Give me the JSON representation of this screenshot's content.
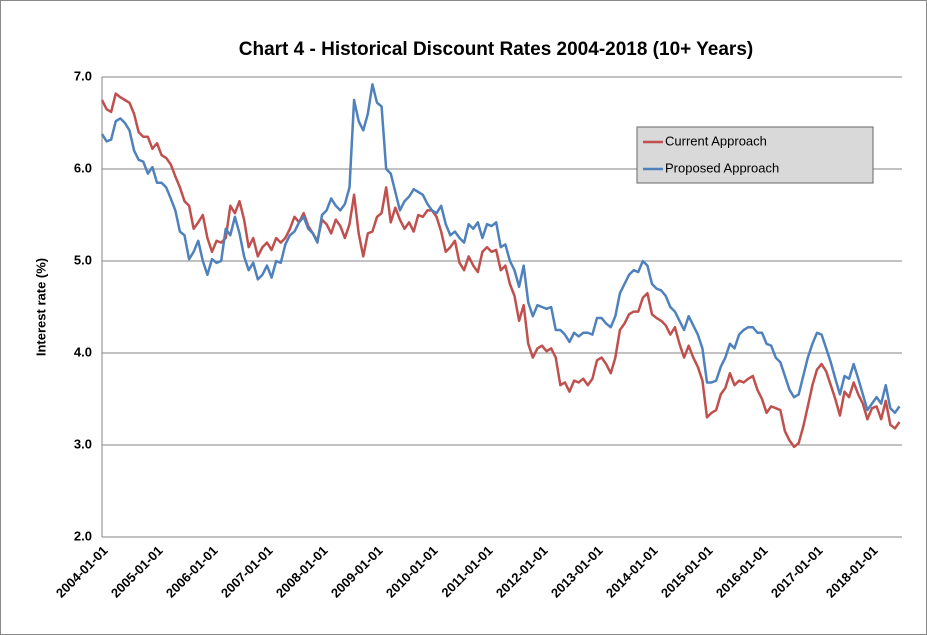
{
  "chart_data": {
    "type": "line",
    "title": "Chart 4 - Historical Discount Rates 2004-2018 (10+ Years)",
    "y_label": "Interest rate (%)",
    "ylim": [
      2,
      7
    ],
    "yticks": [
      {
        "value": 2,
        "label": "2.0"
      },
      {
        "value": 3,
        "label": "3.0"
      },
      {
        "value": 4,
        "label": "4.0"
      },
      {
        "value": 5,
        "label": "5.0"
      },
      {
        "value": 6,
        "label": "6.0"
      },
      {
        "value": 7,
        "label": "7.0"
      }
    ],
    "grid": true,
    "legend": "upper right",
    "categories": [
      "2004-01-01",
      null,
      null,
      null,
      null,
      null,
      null,
      null,
      null,
      null,
      null,
      null,
      "2005-01-01",
      null,
      null,
      null,
      null,
      null,
      null,
      null,
      null,
      null,
      null,
      null,
      "2006-01-01",
      null,
      null,
      null,
      null,
      null,
      null,
      null,
      null,
      null,
      null,
      null,
      "2007-01-01",
      null,
      null,
      null,
      null,
      null,
      null,
      null,
      null,
      null,
      null,
      null,
      "2008-01-01",
      null,
      null,
      null,
      null,
      null,
      null,
      null,
      null,
      null,
      null,
      null,
      "2009-01-01",
      null,
      null,
      null,
      null,
      null,
      null,
      null,
      null,
      null,
      null,
      null,
      "2010-01-01",
      null,
      null,
      null,
      null,
      null,
      null,
      null,
      null,
      null,
      null,
      null,
      "2011-01-01",
      null,
      null,
      null,
      null,
      null,
      null,
      null,
      null,
      null,
      null,
      null,
      "2012-01-01",
      null,
      null,
      null,
      null,
      null,
      null,
      null,
      null,
      null,
      null,
      null,
      "2013-01-01",
      null,
      null,
      null,
      null,
      null,
      null,
      null,
      null,
      null,
      null,
      null,
      "2014-01-01",
      null,
      null,
      null,
      null,
      null,
      null,
      null,
      null,
      null,
      null,
      null,
      "2015-01-01",
      null,
      null,
      null,
      null,
      null,
      null,
      null,
      null,
      null,
      null,
      null,
      "2016-01-01",
      null,
      null,
      null,
      null,
      null,
      null,
      null,
      null,
      null,
      null,
      null,
      "2017-01-01",
      null,
      null,
      null,
      null,
      null,
      null,
      null,
      null,
      null,
      null,
      null,
      "2018-01-01",
      null,
      null,
      null,
      null,
      null,
      null
    ],
    "series": [
      {
        "name": "Current Approach",
        "color": "#c0504d",
        "values": [
          6.75,
          6.65,
          6.62,
          6.82,
          6.78,
          6.75,
          6.72,
          6.6,
          6.4,
          6.35,
          6.35,
          6.22,
          6.28,
          6.15,
          6.12,
          6.05,
          5.92,
          5.8,
          5.65,
          5.6,
          5.35,
          5.42,
          5.5,
          5.25,
          5.1,
          5.22,
          5.2,
          5.25,
          5.6,
          5.52,
          5.65,
          5.45,
          5.15,
          5.25,
          5.05,
          5.15,
          5.2,
          5.12,
          5.25,
          5.2,
          5.25,
          5.35,
          5.48,
          5.42,
          5.52,
          5.38,
          5.3,
          5.22,
          5.45,
          5.4,
          5.3,
          5.45,
          5.38,
          5.25,
          5.4,
          5.72,
          5.3,
          5.05,
          5.3,
          5.32,
          5.48,
          5.52,
          5.8,
          5.42,
          5.58,
          5.45,
          5.35,
          5.42,
          5.32,
          5.5,
          5.48,
          5.55,
          5.55,
          5.48,
          5.32,
          5.1,
          5.15,
          5.22,
          4.98,
          4.9,
          5.05,
          4.95,
          4.88,
          5.1,
          5.15,
          5.1,
          5.12,
          4.9,
          4.95,
          4.75,
          4.62,
          4.35,
          4.52,
          4.1,
          3.95,
          4.05,
          4.08,
          4.02,
          4.05,
          3.95,
          3.65,
          3.68,
          3.58,
          3.7,
          3.68,
          3.72,
          3.65,
          3.72,
          3.92,
          3.95,
          3.88,
          3.78,
          3.95,
          4.25,
          4.32,
          4.42,
          4.45,
          4.45,
          4.6,
          4.65,
          4.42,
          4.38,
          4.35,
          4.3,
          4.2,
          4.28,
          4.1,
          3.95,
          4.08,
          3.95,
          3.85,
          3.7,
          3.3,
          3.35,
          3.38,
          3.55,
          3.62,
          3.78,
          3.65,
          3.7,
          3.68,
          3.72,
          3.75,
          3.6,
          3.5,
          3.35,
          3.42,
          3.4,
          3.38,
          3.15,
          3.05,
          2.98,
          3.02,
          3.2,
          3.42,
          3.65,
          3.82,
          3.88,
          3.8,
          3.65,
          3.5,
          3.32,
          3.58,
          3.52,
          3.68,
          3.55,
          3.45,
          3.28,
          3.4,
          3.42,
          3.28,
          3.48,
          3.22,
          3.18,
          3.25
        ]
      },
      {
        "name": "Proposed Approach",
        "color": "#4f81bd",
        "values": [
          6.38,
          6.3,
          6.32,
          6.52,
          6.55,
          6.5,
          6.42,
          6.2,
          6.1,
          6.08,
          5.95,
          6.02,
          5.85,
          5.85,
          5.8,
          5.68,
          5.55,
          5.32,
          5.28,
          5.02,
          5.1,
          5.22,
          5.0,
          4.85,
          5.02,
          4.98,
          5.0,
          5.35,
          5.28,
          5.48,
          5.3,
          5.05,
          4.9,
          4.98,
          4.8,
          4.85,
          4.95,
          4.82,
          5.0,
          4.98,
          5.18,
          5.28,
          5.32,
          5.42,
          5.48,
          5.35,
          5.3,
          5.2,
          5.5,
          5.55,
          5.68,
          5.6,
          5.55,
          5.62,
          5.8,
          6.75,
          6.52,
          6.42,
          6.6,
          6.92,
          6.72,
          6.68,
          6.0,
          5.95,
          5.75,
          5.55,
          5.65,
          5.7,
          5.78,
          5.75,
          5.72,
          5.62,
          5.55,
          5.52,
          5.6,
          5.4,
          5.28,
          5.32,
          5.25,
          5.2,
          5.4,
          5.35,
          5.42,
          5.25,
          5.4,
          5.38,
          5.42,
          5.15,
          5.18,
          5.0,
          4.9,
          4.72,
          4.95,
          4.55,
          4.4,
          4.52,
          4.5,
          4.48,
          4.5,
          4.25,
          4.25,
          4.2,
          4.12,
          4.22,
          4.18,
          4.22,
          4.22,
          4.2,
          4.38,
          4.38,
          4.32,
          4.28,
          4.4,
          4.65,
          4.75,
          4.85,
          4.9,
          4.88,
          5.0,
          4.95,
          4.75,
          4.7,
          4.68,
          4.62,
          4.5,
          4.45,
          4.35,
          4.25,
          4.4,
          4.3,
          4.2,
          4.05,
          3.68,
          3.68,
          3.7,
          3.85,
          3.95,
          4.1,
          4.05,
          4.2,
          4.25,
          4.28,
          4.28,
          4.22,
          4.22,
          4.1,
          4.08,
          3.95,
          3.9,
          3.75,
          3.6,
          3.52,
          3.55,
          3.75,
          3.95,
          4.1,
          4.22,
          4.2,
          4.05,
          3.9,
          3.72,
          3.55,
          3.75,
          3.72,
          3.88,
          3.72,
          3.55,
          3.38,
          3.45,
          3.52,
          3.45,
          3.65,
          3.4,
          3.35,
          3.42
        ]
      }
    ]
  }
}
